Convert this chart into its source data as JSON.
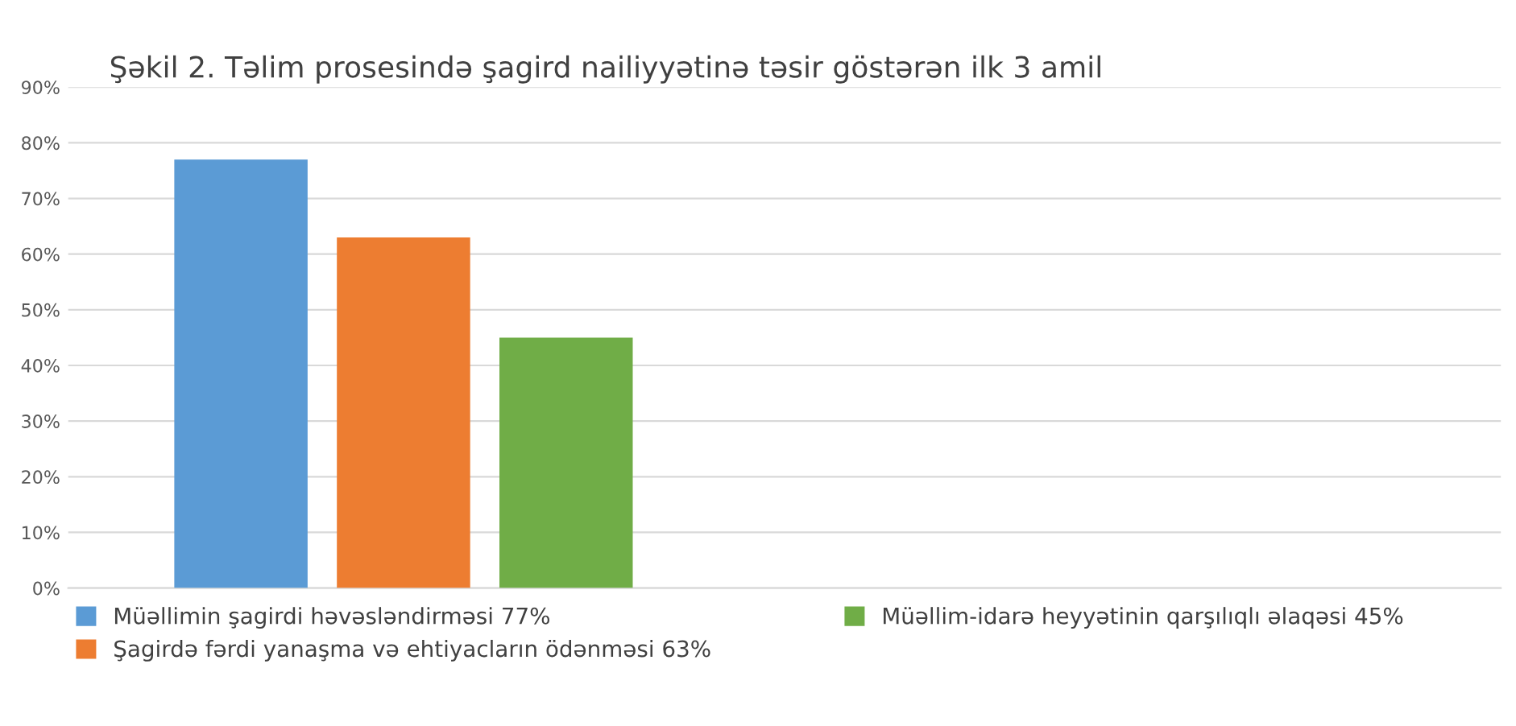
{
  "chart_data": {
    "type": "bar",
    "title": "Şəkil 2. Təlim prosesində şagird nailiyyətinə təsir göstərən ilk 3 amil",
    "categories": [
      null
    ],
    "series": [
      {
        "name": "Müəllimin şagirdi həvəsləndirməsi 77%",
        "color": "#5b9bd5",
        "values": [
          77
        ]
      },
      {
        "name": "Şagirdə fərdi yanaşma və ehtiyacların ödənməsi 63%",
        "color": "#ed7d31",
        "values": [
          63
        ]
      },
      {
        "name": "Müəllim-idarə heyyətinin qarşılıqlı əlaqəsi 45%",
        "color": "#70ad47",
        "values": [
          45
        ]
      }
    ],
    "ylim": [
      0,
      90
    ],
    "yticks": [
      {
        "value": 0,
        "label": "0%"
      },
      {
        "value": 10,
        "label": "10%"
      },
      {
        "value": 20,
        "label": "20%"
      },
      {
        "value": 30,
        "label": "30%"
      },
      {
        "value": 40,
        "label": "40%"
      },
      {
        "value": 50,
        "label": "50%"
      },
      {
        "value": 60,
        "label": "60%"
      },
      {
        "value": 70,
        "label": "70%"
      },
      {
        "value": 80,
        "label": "80%"
      },
      {
        "value": 90,
        "label": "90%"
      }
    ],
    "grid": "y",
    "legend": "bottom"
  }
}
